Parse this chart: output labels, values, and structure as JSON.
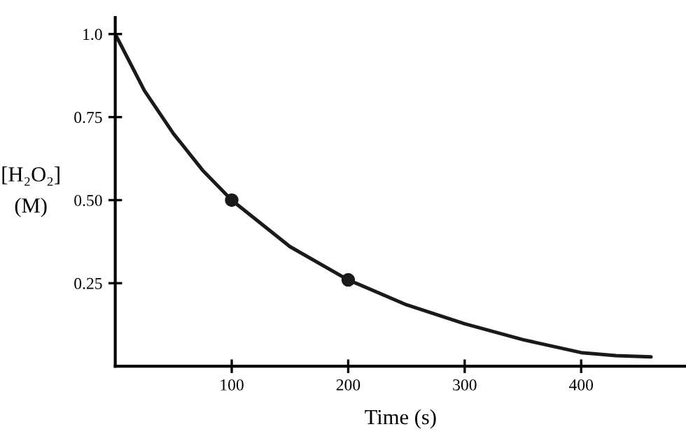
{
  "chart_data": {
    "type": "line",
    "xlabel": "Time (s)",
    "ylabel": "[H₂O₂]\n(M)",
    "xlim": [
      0,
      490
    ],
    "ylim": [
      0,
      1.05
    ],
    "xticks": [
      100,
      200,
      300,
      400
    ],
    "yticks": [
      0.25,
      {
        "value": 0.5,
        "label": "0.50"
      },
      0.75,
      {
        "value": 1.0,
        "label": "1.0"
      }
    ],
    "grid": false,
    "legend": false,
    "series": [
      {
        "color": "#1a1a1a",
        "marker": "none",
        "line_style": "solid",
        "x": [
          0,
          25,
          50,
          75,
          100,
          150,
          200,
          250,
          300,
          350,
          400,
          430,
          460
        ],
        "values": [
          1.0,
          0.83,
          0.7,
          0.59,
          0.5,
          0.36,
          0.26,
          0.185,
          0.128,
          0.08,
          0.041,
          0.032,
          0.028
        ]
      },
      {
        "type": "scatter",
        "color": "#1a1a1a",
        "marker": "circle",
        "x": [
          100,
          200
        ],
        "values": [
          0.5,
          0.26
        ]
      }
    ]
  }
}
